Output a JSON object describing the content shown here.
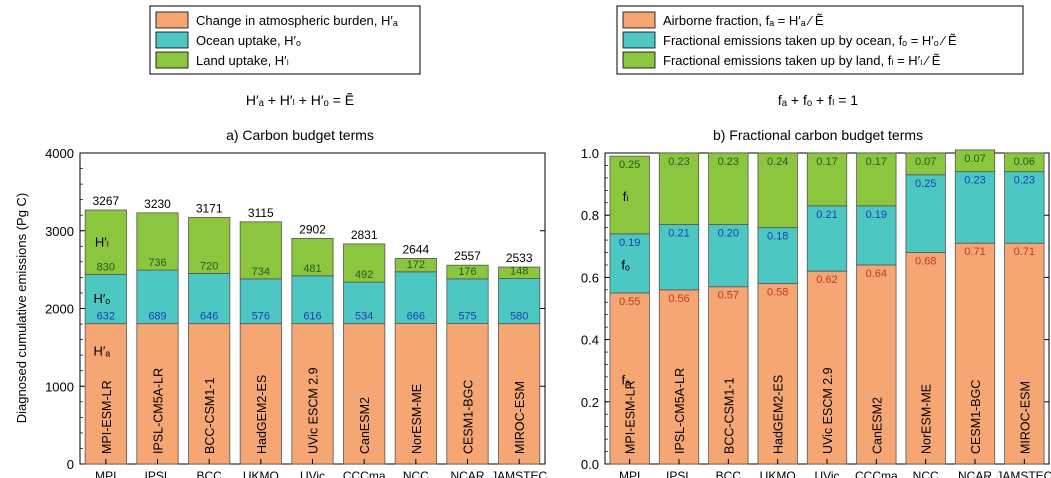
{
  "colors": {
    "atm": "#F5A673",
    "ocean": "#4CC7C1",
    "land": "#8CC63F",
    "axis": "#000000"
  },
  "legends": {
    "left": [
      {
        "key": "atm",
        "text": "Change in atmospheric burden, H′ₐ"
      },
      {
        "key": "ocean",
        "text": "Ocean uptake, H′ₒ"
      },
      {
        "key": "land",
        "text": "Land uptake, H′ₗ"
      }
    ],
    "right": [
      {
        "key": "atm",
        "text": "Airborne fraction, fₐ = H′ₐ ⁄ Ẽ"
      },
      {
        "key": "ocean",
        "text": "Fractional emissions taken up by ocean, fₒ = H′ₒ ⁄ Ẽ"
      },
      {
        "key": "land",
        "text": "Fractional emissions taken up by land, fₗ = H′ₗ ⁄ Ẽ"
      }
    ]
  },
  "equations": {
    "left": "H′ₐ + H′ₗ + H′ₒ = Ẽ",
    "right": "fₐ + fₒ + fₗ = 1"
  },
  "chart_data": [
    {
      "type": "bar",
      "stacked": true,
      "title": "a) Carbon budget terms",
      "ylabel": "Diagnosed cumulative emissions (Pg C)",
      "ylim": [
        0,
        4000
      ],
      "yticks": [
        "0",
        "1000",
        "2000",
        "3000",
        "4000"
      ],
      "categories": [
        "MPI",
        "IPSL",
        "BCC",
        "UKMO",
        "UVic",
        "CCCma",
        "NCC",
        "NCAR",
        "JAMSTEC"
      ],
      "models": [
        "MPI-ESM-LR",
        "IPSL-CM5A-LR",
        "BCC-CSM1-1",
        "HadGEM2-ES",
        "UVic ESCM 2.9",
        "CanESM2",
        "NorESM-ME",
        "CESM1-BGC",
        "MIROC-ESM"
      ],
      "series": [
        {
          "key": "atm",
          "values": [
            1805,
            1805,
            1805,
            1805,
            1805,
            1805,
            1806,
            1806,
            1805
          ]
        },
        {
          "key": "ocean",
          "values": [
            632,
            689,
            646,
            576,
            616,
            534,
            666,
            575,
            580
          ]
        },
        {
          "key": "land",
          "values": [
            830,
            736,
            720,
            734,
            481,
            492,
            172,
            176,
            148
          ]
        }
      ],
      "totals": [
        "3267",
        "3230",
        "3171",
        "3115",
        "2902",
        "2831",
        "2644",
        "2557",
        "2533"
      ],
      "segment_labels": {
        "ocean": [
          "632",
          "689",
          "646",
          "576",
          "616",
          "534",
          "666",
          "575",
          "580"
        ],
        "land": [
          "830",
          "736",
          "720",
          "734",
          "481",
          "492",
          "172",
          "176",
          "148"
        ]
      },
      "term_labels": {
        "atm": "H′ₐ",
        "ocean": "H′ₒ",
        "land": "H′ₗ"
      }
    },
    {
      "type": "bar",
      "stacked": true,
      "title": "b) Fractional carbon budget terms",
      "ylabel": "",
      "ylim": [
        0,
        1.0
      ],
      "yticks": [
        "0.0",
        "0.2",
        "0.4",
        "0.6",
        "0.8",
        "1.0"
      ],
      "categories": [
        "MPI",
        "IPSL",
        "BCC",
        "UKMO",
        "UVic",
        "CCCma",
        "NCC",
        "NCAR",
        "JAMSTEC"
      ],
      "models": [
        "MPI-ESM-LR",
        "IPSL-CM5A-LR",
        "BCC-CSM1-1",
        "HadGEM2-ES",
        "UVic ESCM 2.9",
        "CanESM2",
        "NorESM-ME",
        "CESM1-BGC",
        "MIROC-ESM"
      ],
      "series": [
        {
          "key": "atm",
          "values": [
            0.55,
            0.56,
            0.57,
            0.58,
            0.62,
            0.64,
            0.68,
            0.71,
            0.71
          ]
        },
        {
          "key": "ocean",
          "values": [
            0.19,
            0.21,
            0.2,
            0.18,
            0.21,
            0.19,
            0.25,
            0.23,
            0.23
          ]
        },
        {
          "key": "land",
          "values": [
            0.25,
            0.23,
            0.23,
            0.24,
            0.17,
            0.17,
            0.07,
            0.07,
            0.06
          ]
        }
      ],
      "segment_labels": {
        "atm": [
          "0.55",
          "0.56",
          "0.57",
          "0.58",
          "0.62",
          "0.64",
          "0.68",
          "0.71",
          "0.71"
        ],
        "ocean": [
          "0.19",
          "0.21",
          "0.20",
          "0.18",
          "0.21",
          "0.19",
          "0.25",
          "0.23",
          "0.23"
        ],
        "land": [
          "0.25",
          "0.23",
          "0.23",
          "0.24",
          "0.17",
          "0.17",
          "0.07",
          "0.07",
          "0.06"
        ]
      },
      "term_labels": {
        "atm": "fₐ",
        "ocean": "fₒ",
        "land": "fₗ"
      }
    }
  ]
}
